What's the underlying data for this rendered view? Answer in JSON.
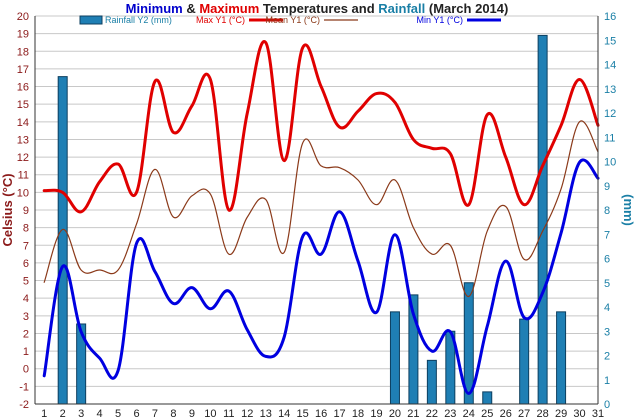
{
  "chart_data": {
    "type": "line",
    "title_parts": [
      {
        "text": "Minimum",
        "color": "#0000cc"
      },
      {
        "text": " & ",
        "color": "#222222"
      },
      {
        "text": "Maximum",
        "color": "#e00000"
      },
      {
        "text": " Temperatures and ",
        "color": "#222222"
      },
      {
        "text": "Rainfall",
        "color": "#1a7fa6"
      },
      {
        "text": " (March 2014)",
        "color": "#222222"
      }
    ],
    "ylabel": "Celsius (°C)",
    "y2label": "(mm)",
    "ylim": [
      -2,
      20
    ],
    "y2lim": [
      0,
      16
    ],
    "y_ticks": [
      -2,
      -1,
      0,
      1,
      2,
      3,
      4,
      5,
      6,
      7,
      8,
      9,
      10,
      11,
      12,
      13,
      14,
      15,
      16,
      17,
      18,
      19,
      20
    ],
    "y2_ticks": [
      0,
      1,
      2,
      3,
      4,
      5,
      6,
      7,
      8,
      9,
      10,
      11,
      12,
      13,
      14,
      15,
      16
    ],
    "x": [
      1,
      2,
      3,
      4,
      5,
      6,
      7,
      8,
      9,
      10,
      11,
      12,
      13,
      14,
      15,
      16,
      17,
      18,
      19,
      20,
      21,
      22,
      23,
      24,
      25,
      26,
      27,
      28,
      29,
      30,
      31
    ],
    "grid": true,
    "legend": "top",
    "series": [
      {
        "name": "Rainfall Y2 (mm)",
        "type": "bar",
        "axis": "y2",
        "color": "#1f7fb4",
        "edge": "#0d3f5f",
        "values": [
          0,
          13.5,
          3.3,
          0,
          0,
          0,
          0,
          0,
          0,
          0,
          0,
          0,
          0,
          0,
          0,
          0,
          0,
          0,
          0,
          3.8,
          4.5,
          1.8,
          3.0,
          5.0,
          0.5,
          0,
          3.5,
          15.2,
          3.8,
          0,
          0
        ]
      },
      {
        "name": "Max Y1 (°C)",
        "type": "line",
        "axis": "y",
        "color": "#e00000",
        "width": 3,
        "values": [
          10.1,
          10.0,
          8.9,
          10.6,
          11.6,
          10.0,
          16.3,
          13.4,
          14.9,
          16.4,
          9.0,
          14.5,
          18.5,
          11.8,
          18.2,
          16.0,
          13.7,
          14.6,
          15.6,
          15.1,
          13.0,
          12.5,
          12.2,
          9.3,
          14.4,
          12.0,
          9.3,
          11.5,
          13.8,
          16.4,
          13.8
        ]
      },
      {
        "name": "Mean Y1 (°C)",
        "type": "line",
        "axis": "y",
        "color": "#8b3a1a",
        "width": 1.2,
        "values": [
          4.9,
          7.9,
          5.6,
          5.6,
          5.6,
          8.2,
          11.3,
          8.6,
          9.8,
          9.9,
          6.5,
          8.6,
          9.6,
          6.6,
          12.8,
          11.5,
          11.4,
          10.7,
          9.3,
          10.7,
          8.0,
          6.5,
          7.0,
          4.1,
          7.8,
          9.2,
          6.2,
          7.8,
          10.2,
          14.0,
          12.3
        ]
      },
      {
        "name": "Min Y1 (°C)",
        "type": "line",
        "axis": "y",
        "color": "#0000e0",
        "width": 3,
        "values": [
          -0.4,
          5.8,
          2.1,
          0.6,
          -0.1,
          7.1,
          5.5,
          3.7,
          4.6,
          3.4,
          4.4,
          2.2,
          0.7,
          1.8,
          7.5,
          6.5,
          8.9,
          6.1,
          3.2,
          7.6,
          3.1,
          1.0,
          2.1,
          -1.4,
          2.4,
          6.1,
          2.9,
          4.3,
          7.7,
          11.7,
          10.8
        ]
      }
    ]
  }
}
